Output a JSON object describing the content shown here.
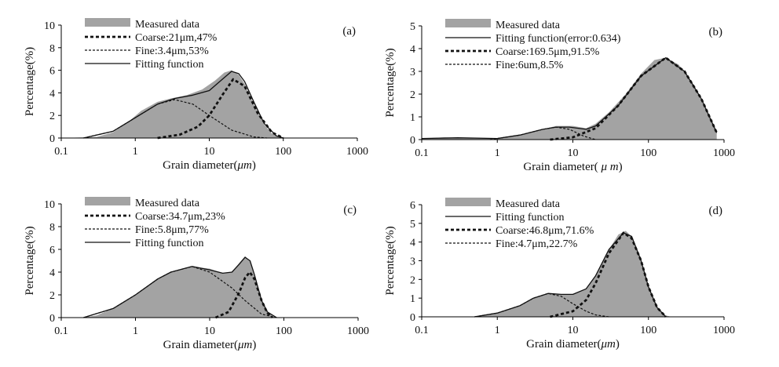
{
  "colors": {
    "measured": "#a3a3a3",
    "line": "#111111",
    "background": "#ffffff"
  },
  "chart_data": [
    {
      "type": "area",
      "panel_label": "(a)",
      "xlabel_prefix": "Grain diameter(",
      "xlabel_unit": "μm",
      "xlabel_suffix": ")",
      "ylabel": "Percentage(%)",
      "xscale": "log",
      "xlim": [
        0.1,
        1000
      ],
      "ylim": [
        0,
        10
      ],
      "xticks": [
        "0.1",
        "1",
        "10",
        "100",
        "1000"
      ],
      "yticks": [
        0,
        2,
        4,
        6,
        8,
        10
      ],
      "grid": false,
      "legend_position": "top-left",
      "legend": [
        {
          "text": "Measured data",
          "style": "measured"
        },
        {
          "text": "Coarse:21μm,47%",
          "style": "coarse"
        },
        {
          "text": "Fine:3.4μm,53%",
          "style": "fine"
        },
        {
          "text": "Fitting function",
          "style": "fit"
        }
      ],
      "measured": {
        "x": [
          0.1,
          0.3,
          0.5,
          0.8,
          1.2,
          2,
          3,
          5,
          8,
          12,
          16,
          20,
          25,
          30,
          40,
          55,
          70,
          90,
          100
        ],
        "y": [
          0,
          0.1,
          0.5,
          1.4,
          2.4,
          3.2,
          3.5,
          3.8,
          4.3,
          5.1,
          5.8,
          6.0,
          5.6,
          4.8,
          3.0,
          1.2,
          0.4,
          0.1,
          0
        ]
      },
      "components": [
        {
          "x": [
            0.2,
            0.5,
            1,
            2,
            3.4,
            6,
            10,
            20,
            40,
            60
          ],
          "y": [
            0,
            0.6,
            1.8,
            3.0,
            3.4,
            3.0,
            2.0,
            0.7,
            0.1,
            0
          ],
          "style": "fine"
        },
        {
          "x": [
            2,
            4,
            7,
            10,
            15,
            21,
            30,
            45,
            70,
            100
          ],
          "y": [
            0,
            0.3,
            1.0,
            2.0,
            3.8,
            5.2,
            4.6,
            2.2,
            0.5,
            0
          ],
          "style": "coarse"
        }
      ],
      "fitting": {
        "x": [
          0.2,
          0.5,
          1,
          2,
          3.4,
          6,
          10,
          15,
          20,
          25,
          30,
          40,
          55,
          80,
          100
        ],
        "y": [
          0,
          0.6,
          1.8,
          3.0,
          3.5,
          3.8,
          4.2,
          5.2,
          5.9,
          5.7,
          5.0,
          3.2,
          1.3,
          0.2,
          0
        ],
        "style": "fit"
      }
    },
    {
      "type": "area",
      "panel_label": "(b)",
      "xlabel_prefix": "Grain diameter(",
      "xlabel_unit": " μ m",
      "xlabel_suffix": ")",
      "ylabel": "Percentage(%)",
      "xscale": "log",
      "xlim": [
        0.1,
        1000
      ],
      "ylim": [
        0,
        5
      ],
      "xticks": [
        "0.1",
        "1",
        "10",
        "100",
        "1000"
      ],
      "yticks": [
        0,
        1,
        2,
        3,
        4,
        5
      ],
      "grid": false,
      "legend_position": "top-left",
      "legend": [
        {
          "text": "Measured data",
          "style": "measured"
        },
        {
          "text": "Fitting function(error:0.634)",
          "style": "fit"
        },
        {
          "text": "Coarse:169.5μm,91.5%",
          "style": "coarse"
        },
        {
          "text": "Fine:6um,8.5%",
          "style": "fine"
        }
      ],
      "measured": {
        "x": [
          0.1,
          0.2,
          0.5,
          1,
          2,
          4,
          6,
          10,
          15,
          20,
          30,
          50,
          80,
          120,
          170,
          250,
          400,
          600,
          800
        ],
        "y": [
          0.05,
          0.1,
          0.05,
          0.05,
          0.2,
          0.45,
          0.6,
          0.6,
          0.5,
          0.7,
          1.2,
          2.0,
          2.9,
          3.5,
          3.6,
          3.3,
          2.4,
          1.2,
          0.3
        ]
      },
      "components": [
        {
          "x": [
            0.8,
            2,
            4,
            6,
            9,
            14,
            20
          ],
          "y": [
            0,
            0.2,
            0.45,
            0.55,
            0.45,
            0.15,
            0
          ],
          "style": "fine"
        },
        {
          "x": [
            5,
            10,
            20,
            40,
            80,
            169.5,
            300,
            500,
            800
          ],
          "y": [
            0,
            0.1,
            0.5,
            1.5,
            2.8,
            3.6,
            3.0,
            1.8,
            0.3
          ],
          "style": "coarse"
        }
      ],
      "fitting": {
        "x": [
          0.1,
          0.3,
          1,
          2,
          4,
          6,
          9,
          15,
          20,
          40,
          80,
          169.5,
          300,
          500,
          800
        ],
        "y": [
          0.05,
          0.08,
          0.05,
          0.2,
          0.45,
          0.55,
          0.55,
          0.45,
          0.6,
          1.5,
          2.8,
          3.6,
          3.0,
          1.8,
          0.3
        ],
        "style": "fit"
      }
    },
    {
      "type": "area",
      "panel_label": "(c)",
      "xlabel_prefix": "Grain diameter(",
      "xlabel_unit": "μm",
      "xlabel_suffix": ")",
      "ylabel": "Percentage(%)",
      "xscale": "log",
      "xlim": [
        0.1,
        1000
      ],
      "ylim": [
        0,
        10
      ],
      "xticks": [
        "0.1",
        "1",
        "10",
        "100",
        "1000"
      ],
      "yticks": [
        0,
        2,
        4,
        6,
        8,
        10
      ],
      "grid": false,
      "legend_position": "top-left",
      "legend": [
        {
          "text": "Measured data",
          "style": "measured"
        },
        {
          "text": "Coarse:34.7μm,23%",
          "style": "coarse"
        },
        {
          "text": "Fine:5.8μm,77%",
          "style": "fine"
        },
        {
          "text": "Fitting function",
          "style": "fit"
        }
      ],
      "measured": {
        "x": [
          0.2,
          0.3,
          0.5,
          1,
          2,
          3,
          5.8,
          10,
          15,
          20,
          25,
          30,
          35,
          40,
          50,
          60,
          70,
          80
        ],
        "y": [
          0,
          0.2,
          0.8,
          2.0,
          3.4,
          4.0,
          4.5,
          4.3,
          3.9,
          4.0,
          4.8,
          5.4,
          5.0,
          3.6,
          1.4,
          0.5,
          0.2,
          0
        ]
      },
      "components": [
        {
          "x": [
            0.2,
            0.5,
            1,
            2,
            3,
            5.8,
            10,
            20,
            30,
            50,
            80
          ],
          "y": [
            0,
            0.8,
            2.0,
            3.4,
            4.0,
            4.5,
            4.0,
            2.6,
            1.5,
            0.3,
            0
          ],
          "style": "fine"
        },
        {
          "x": [
            12,
            18,
            25,
            30,
            34.7,
            40,
            50,
            60,
            70
          ],
          "y": [
            0,
            0.5,
            2.2,
            3.5,
            4.0,
            3.4,
            1.5,
            0.4,
            0
          ],
          "style": "coarse"
        }
      ],
      "fitting": {
        "x": [
          0.2,
          0.5,
          1,
          2,
          3,
          5.8,
          10,
          15,
          20,
          25,
          30,
          35,
          40,
          50,
          60,
          80
        ],
        "y": [
          0,
          0.8,
          2.0,
          3.4,
          4.0,
          4.5,
          4.2,
          3.9,
          4.0,
          4.7,
          5.3,
          5.0,
          3.8,
          1.5,
          0.5,
          0
        ],
        "style": "fit"
      }
    },
    {
      "type": "area",
      "panel_label": "(d)",
      "xlabel_prefix": "Grain diameter(",
      "xlabel_unit": "μm",
      "xlabel_suffix": ")",
      "ylabel": "Percentage(%)",
      "xscale": "log",
      "xlim": [
        0.1,
        1000
      ],
      "ylim": [
        0,
        6
      ],
      "xticks": [
        "0.1",
        "1",
        "10",
        "100",
        "1000"
      ],
      "yticks": [
        0,
        1,
        2,
        3,
        4,
        5,
        6
      ],
      "grid": false,
      "legend_position": "top-left",
      "legend": [
        {
          "text": "Measured data",
          "style": "measured"
        },
        {
          "text": "Fitting function",
          "style": "fit"
        },
        {
          "text": "Coarse:46.8μm,71.6%",
          "style": "coarse"
        },
        {
          "text": "Fine:4.7μm,22.7%",
          "style": "fine"
        }
      ],
      "measured": {
        "x": [
          0.5,
          1,
          2,
          3,
          4.7,
          7,
          10,
          15,
          20,
          30,
          40,
          50,
          60,
          80,
          100,
          130,
          160,
          200
        ],
        "y": [
          0,
          0.2,
          0.6,
          1.0,
          1.25,
          1.2,
          1.2,
          1.5,
          2.2,
          3.6,
          4.4,
          4.6,
          4.3,
          3.0,
          1.6,
          0.5,
          0.1,
          0
        ]
      },
      "components": [
        {
          "x": [
            0.5,
            1,
            2,
            3,
            4.7,
            7,
            10,
            15,
            20,
            30
          ],
          "y": [
            0,
            0.2,
            0.6,
            1.0,
            1.25,
            1.1,
            0.7,
            0.3,
            0.1,
            0
          ],
          "style": "fine"
        },
        {
          "x": [
            5,
            10,
            15,
            20,
            30,
            46.8,
            60,
            80,
            100,
            130,
            170
          ],
          "y": [
            0,
            0.3,
            0.9,
            1.8,
            3.4,
            4.5,
            4.2,
            3.0,
            1.6,
            0.5,
            0
          ],
          "style": "coarse"
        }
      ],
      "fitting": {
        "x": [
          0.5,
          1,
          2,
          3,
          4.7,
          7,
          10,
          15,
          20,
          30,
          46.8,
          60,
          80,
          100,
          130,
          170
        ],
        "y": [
          0,
          0.2,
          0.6,
          1.0,
          1.25,
          1.2,
          1.2,
          1.5,
          2.2,
          3.6,
          4.5,
          4.3,
          3.0,
          1.6,
          0.5,
          0
        ],
        "style": "fit"
      }
    }
  ]
}
